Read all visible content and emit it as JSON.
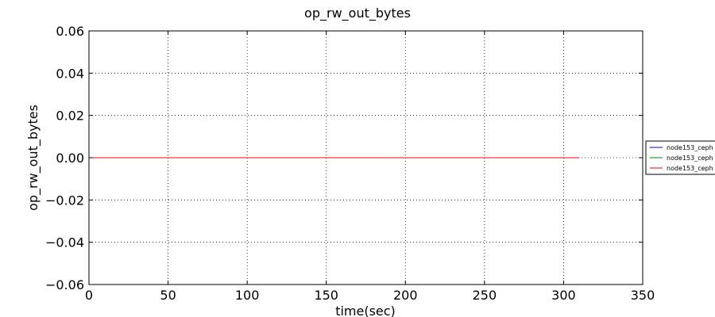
{
  "chart_data": {
    "type": "line",
    "title": "op_rw_out_bytes",
    "xlabel": "time(sec)",
    "ylabel": "op_rw_out_bytes",
    "xlim": [
      0,
      350
    ],
    "ylim": [
      -0.06,
      0.06
    ],
    "xticks": [
      0,
      50,
      100,
      150,
      200,
      250,
      300,
      350
    ],
    "xtick_labels": [
      "0",
      "50",
      "100",
      "150",
      "200",
      "250",
      "300",
      "350"
    ],
    "yticks": [
      0.06,
      0.04,
      0.02,
      0.0,
      -0.02,
      -0.04,
      -0.06
    ],
    "ytick_labels": [
      "0.06",
      "0.04",
      "0.02",
      "0.00",
      "−0.02",
      "−0.04",
      "−0.06"
    ],
    "grid": true,
    "legend_position": "right, outside plot",
    "series": [
      {
        "name": "node153_ceph",
        "color": "#0000ff",
        "x": [
          0,
          310
        ],
        "y": [
          0,
          0
        ]
      },
      {
        "name": "node153_ceph",
        "color": "#008000",
        "x": [
          0,
          310
        ],
        "y": [
          0,
          0
        ]
      },
      {
        "name": "node153_ceph",
        "color": "#ff0000",
        "x": [
          0,
          310
        ],
        "y": [
          0,
          0
        ]
      }
    ]
  }
}
